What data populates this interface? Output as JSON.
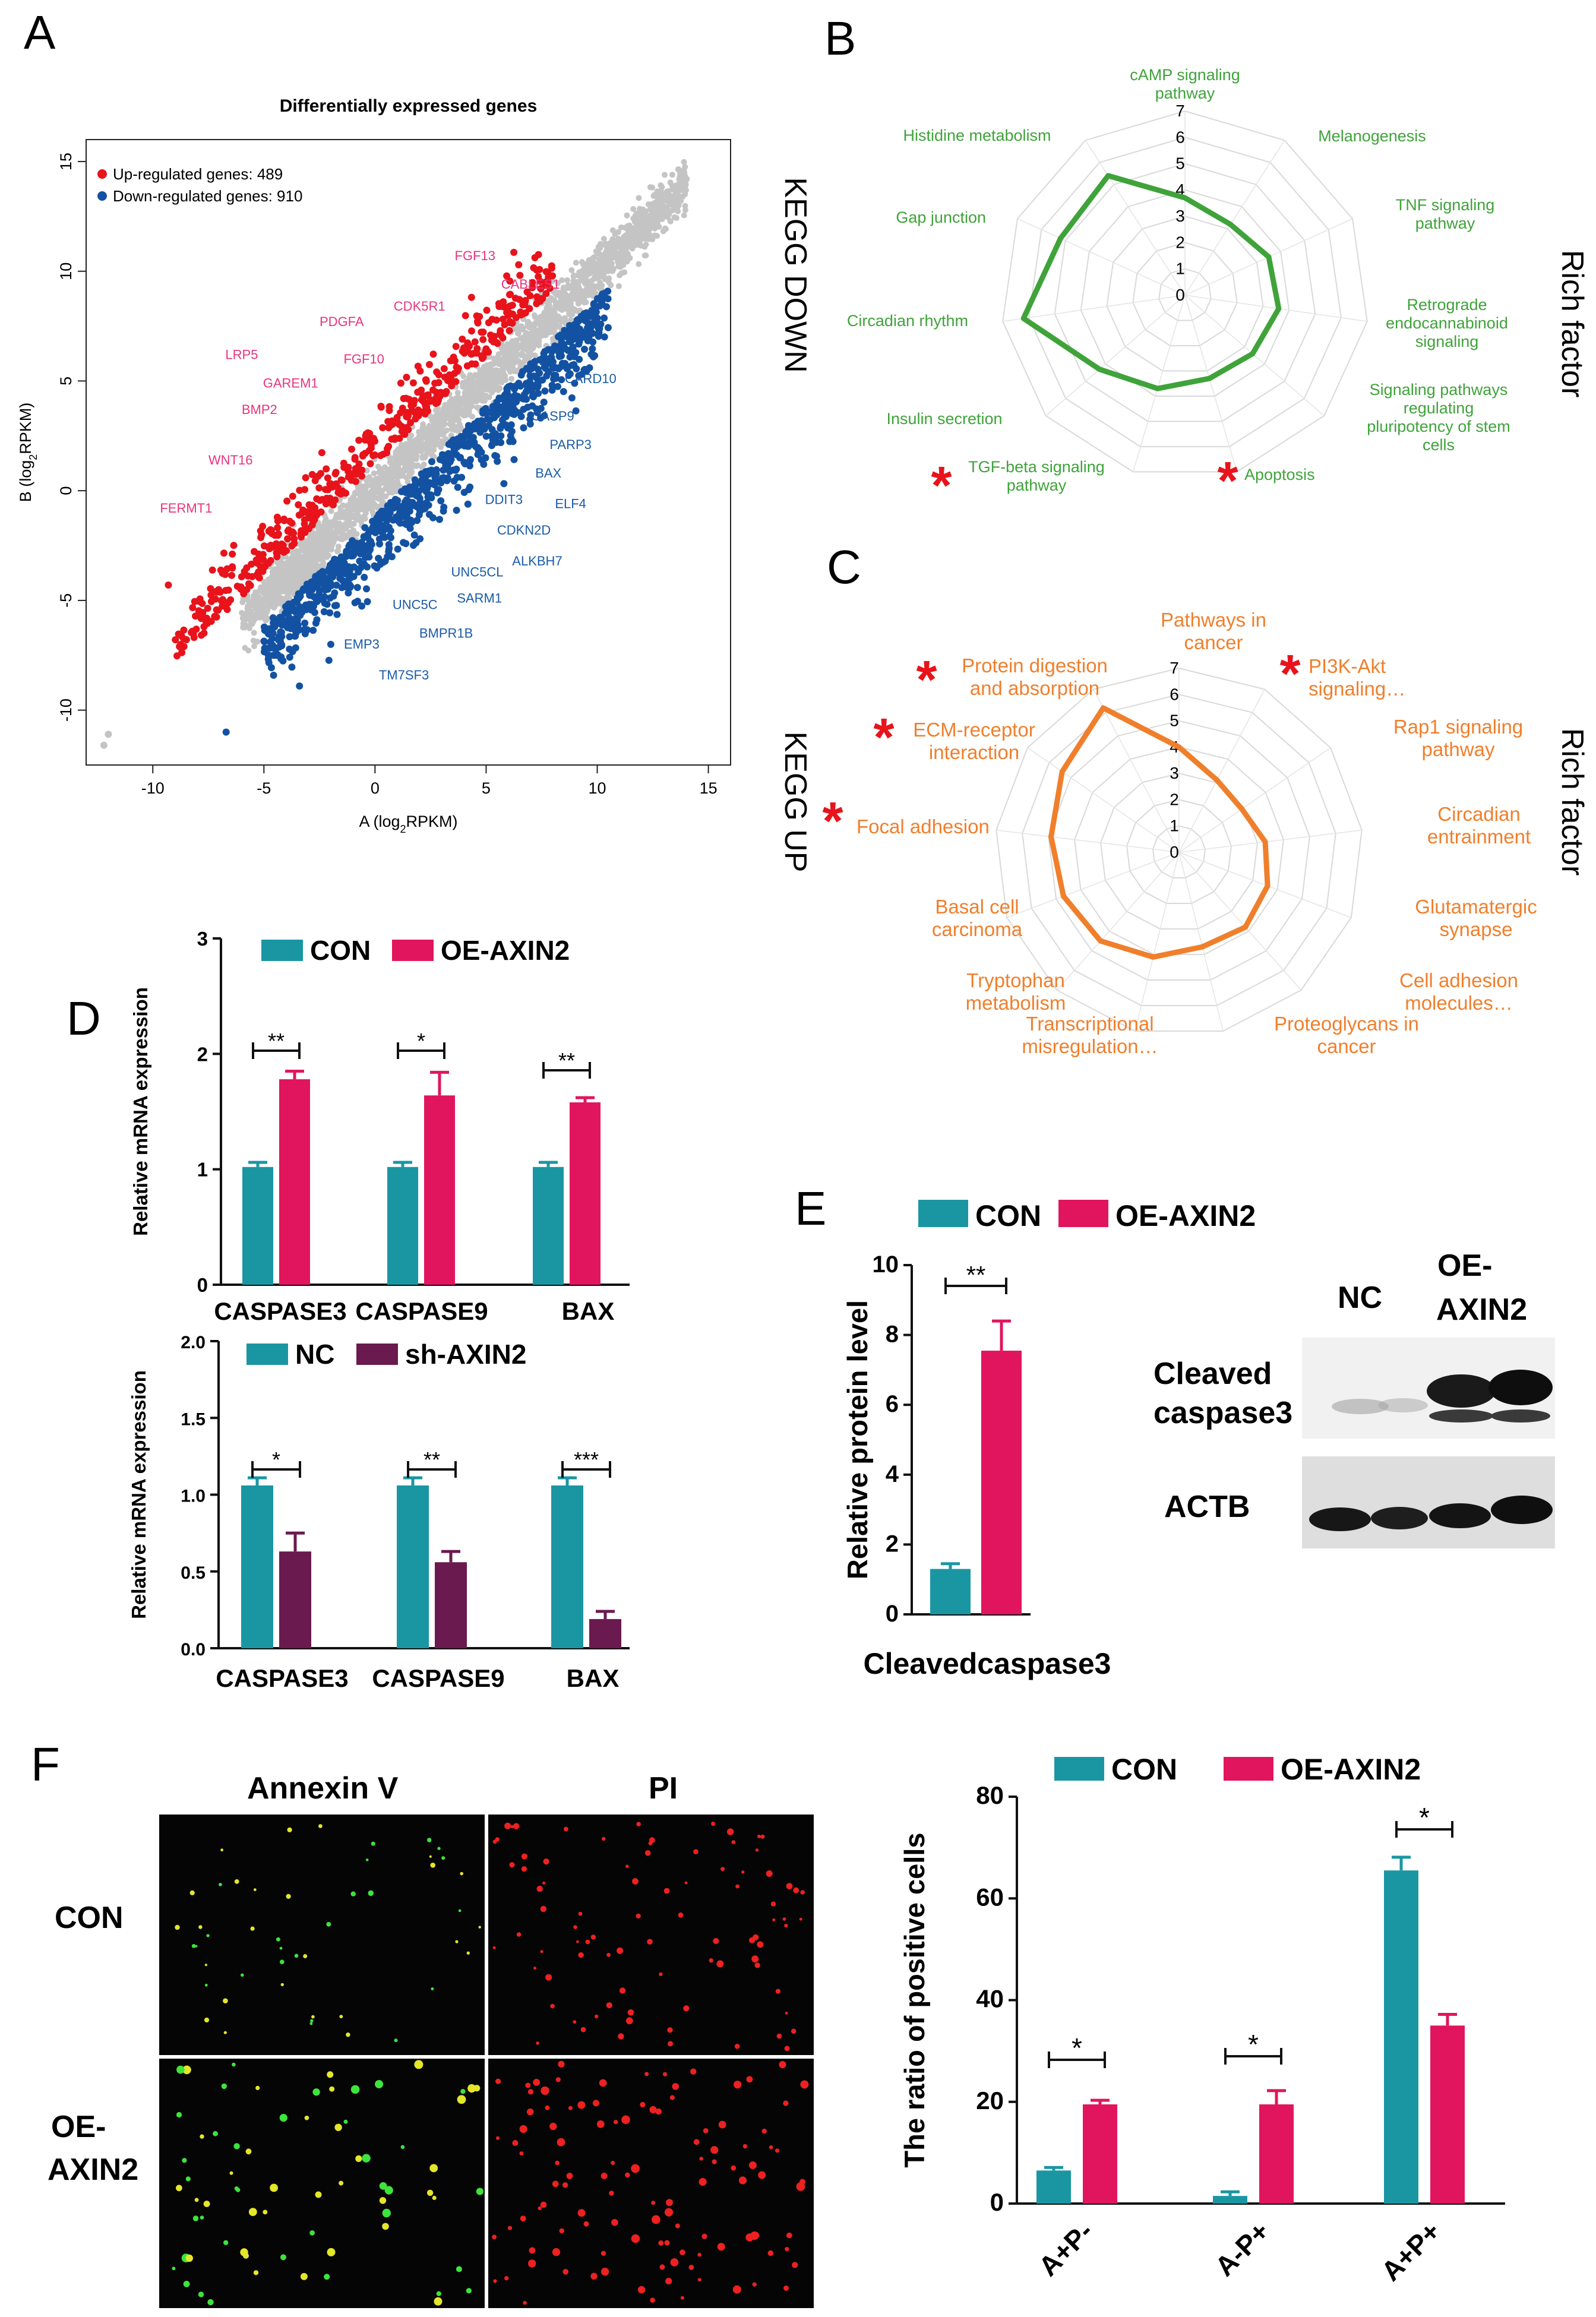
{
  "colors": {
    "up": "#e8131b",
    "down": "#1352a2",
    "nonsig": "#c4c4c4",
    "up_label": "#e8347e",
    "down_label": "#1a5ba8",
    "kegg_down": "#3fa33a",
    "kegg_up": "#f07f2c",
    "teal": "#1a96a3",
    "pink": "#e0155e",
    "maroon": "#6a1a4e",
    "star": "#e8131b",
    "fluor_green": "#3ce43c",
    "fluor_red": "#ee2020",
    "fluor_yellow": "#e4e628"
  },
  "labels": {
    "A": "A",
    "B": "B",
    "C": "C",
    "D": "D",
    "E": "E",
    "F": "F",
    "E_lane_nc": "NC",
    "E_lane_oe1": "OE-",
    "E_lane_oe2": "AXIN2",
    "E_blot1a": "Cleaved",
    "E_blot1b": "caspase3",
    "E_blot2": "ACTB",
    "F_col1": "Annexin V",
    "F_col2": "PI",
    "F_row1": "CON",
    "F_row2a": "OE-",
    "F_row2b": "AXIN2"
  },
  "chart_data": [
    {
      "id": "A",
      "type": "scatter",
      "title": "Differentially expressed genes",
      "xlabel_main": "A (log",
      "xlabel_sub": "2",
      "xlabel_tail": "RPKM)",
      "ylabel_main": "B (log",
      "ylabel_sub": "2",
      "ylabel_tail": "RPKM)",
      "xlim": [
        -13,
        16
      ],
      "ylim": [
        -12.5,
        16
      ],
      "xticks": [
        "-10",
        "-5",
        "0",
        "5",
        "10",
        "15"
      ],
      "yticks": [
        "-10",
        "-5",
        "0",
        "5",
        "10",
        "15"
      ],
      "legend": [
        "Up-regulated genes: 489",
        "Down-regulated genes: 910"
      ],
      "up_genes": [
        {
          "name": "FGF13",
          "x": 4.5,
          "y": 10.5
        },
        {
          "name": "CABLES1",
          "x": 7,
          "y": 9.2
        },
        {
          "name": "CDK5R1",
          "x": 2,
          "y": 8.2
        },
        {
          "name": "PDGFA",
          "x": -1.5,
          "y": 7.5
        },
        {
          "name": "FGF10",
          "x": -0.5,
          "y": 5.8
        },
        {
          "name": "LRP5",
          "x": -6,
          "y": 6
        },
        {
          "name": "GAREM1",
          "x": -3.8,
          "y": 4.7
        },
        {
          "name": "BMP2",
          "x": -5.2,
          "y": 3.5
        },
        {
          "name": "WNT16",
          "x": -6.5,
          "y": 1.2
        },
        {
          "name": "FERMT1",
          "x": -8.5,
          "y": -1
        }
      ],
      "down_genes": [
        {
          "name": "CARD10",
          "x": 9.7,
          "y": 4.9
        },
        {
          "name": "CASP9",
          "x": 8,
          "y": 3.2
        },
        {
          "name": "PARP3",
          "x": 8.8,
          "y": 1.9
        },
        {
          "name": "BAX",
          "x": 7.8,
          "y": 0.6
        },
        {
          "name": "ELF4",
          "x": 8.8,
          "y": -0.8
        },
        {
          "name": "DDIT3",
          "x": 5.8,
          "y": -0.6
        },
        {
          "name": "CDKN2D",
          "x": 6.7,
          "y": -2
        },
        {
          "name": "ALKBH7",
          "x": 7.3,
          "y": -3.4
        },
        {
          "name": "UNC5CL",
          "x": 4.6,
          "y": -3.9
        },
        {
          "name": "SARM1",
          "x": 4.7,
          "y": -5.1
        },
        {
          "name": "UNC5C",
          "x": 1.8,
          "y": -5.4
        },
        {
          "name": "BMPR1B",
          "x": 3.2,
          "y": -6.7
        },
        {
          "name": "EMP3",
          "x": -0.6,
          "y": -7.2
        },
        {
          "name": "TM7SF3",
          "x": 1.3,
          "y": -8.6
        }
      ]
    },
    {
      "id": "B",
      "type": "radar",
      "side_left": "KEGG DOWN",
      "side_right": "Rich factor",
      "rlim": [
        0,
        7
      ],
      "rticks": [
        "0",
        "1",
        "2",
        "3",
        "4",
        "5",
        "6",
        "7"
      ],
      "categories": [
        [
          "cAMP signaling",
          "pathway"
        ],
        [
          "Melanogenesis"
        ],
        [
          "TNF signaling",
          "pathway"
        ],
        [
          "Retrograde",
          "endocannabinoid",
          "signaling"
        ],
        [
          "Signaling pathways",
          "regulating",
          "pluripotency of stem",
          "cells"
        ],
        [
          "Apoptosis"
        ],
        [
          "TGF-beta signaling",
          "pathway"
        ],
        [
          "Insulin secretion"
        ],
        [
          "Circadian rhythm"
        ],
        [
          "Gap junction"
        ],
        [
          "Histidine metabolism"
        ]
      ],
      "starred": [
        5,
        6
      ],
      "values": [
        3.7,
        3.2,
        3.5,
        3.6,
        3.4,
        3.3,
        3.7,
        4.3,
        6.2,
        5.2,
        5.4
      ]
    },
    {
      "id": "C",
      "type": "radar",
      "side_left": "KEGG UP",
      "side_right": "Rich factor",
      "rlim": [
        0,
        7
      ],
      "rticks": [
        "0",
        "1",
        "2",
        "3",
        "4",
        "5",
        "6",
        "7"
      ],
      "categories": [
        [
          "Pathways in",
          "cancer"
        ],
        [
          "PI3K-Akt",
          "signaling…"
        ],
        [
          "Rap1 signaling",
          "pathway"
        ],
        [
          "Circadian",
          "entrainment"
        ],
        [
          "Glutamatergic",
          "synapse"
        ],
        [
          "Cell adhesion",
          "molecules…"
        ],
        [
          "Proteoglycans in",
          "cancer"
        ],
        [
          "Transcriptional",
          "misregulation…"
        ],
        [
          "Tryptophan",
          "metabolism"
        ],
        [
          "Basal cell",
          "carcinoma"
        ],
        [
          "Focal adhesion"
        ],
        [
          "ECM-receptor",
          "interaction"
        ],
        [
          "Protein digestion",
          "and absorption"
        ]
      ],
      "starred": [
        1,
        10,
        11,
        12
      ],
      "values": [
        4,
        3.1,
        2.9,
        3.3,
        3.6,
        3.8,
        3.7,
        4.1,
        4.5,
        4.7,
        4.9,
        5.4,
        6.2
      ]
    },
    {
      "id": "D1",
      "type": "bar",
      "ylabel": "Relative mRNA expression",
      "ylim": [
        0,
        3
      ],
      "yticks": [
        "0",
        "1",
        "2",
        "3"
      ],
      "categories": [
        "CASPASE3",
        "CASPASE9",
        "BAX"
      ],
      "series": [
        {
          "name": "CON",
          "values": [
            1.02,
            1.02,
            1.02
          ],
          "errors": [
            0.04,
            0.04,
            0.04
          ]
        },
        {
          "name": "OE-AXIN2",
          "values": [
            1.78,
            1.64,
            1.58
          ],
          "errors": [
            0.07,
            0.2,
            0.04
          ]
        }
      ],
      "significance": [
        "**",
        "*",
        "**"
      ]
    },
    {
      "id": "D2",
      "type": "bar",
      "ylabel": "Relative mRNA expression",
      "ylim": [
        0,
        2
      ],
      "yticks": [
        "0.0",
        "0.5",
        "1.0",
        "1.5",
        "2.0"
      ],
      "categories": [
        "CASPASE3",
        "CASPASE9",
        "BAX"
      ],
      "series": [
        {
          "name": "NC",
          "values": [
            1.06,
            1.06,
            1.06
          ],
          "errors": [
            0.05,
            0.05,
            0.05
          ]
        },
        {
          "name": "sh-AXIN2",
          "values": [
            0.63,
            0.56,
            0.19
          ],
          "errors": [
            0.12,
            0.07,
            0.05
          ]
        }
      ],
      "significance": [
        "*",
        "**",
        "***"
      ]
    },
    {
      "id": "E",
      "type": "bar",
      "ylabel": "Relative protein level",
      "ylim": [
        0,
        10
      ],
      "yticks": [
        "0",
        "2",
        "4",
        "6",
        "8",
        "10"
      ],
      "categories": [
        "Cleavedcaspase3"
      ],
      "series": [
        {
          "name": "CON",
          "values": [
            1.3
          ],
          "errors": [
            0.15
          ]
        },
        {
          "name": "OE-AXIN2",
          "values": [
            7.55
          ],
          "errors": [
            0.85
          ]
        }
      ],
      "significance": [
        "**"
      ]
    },
    {
      "id": "F",
      "type": "bar",
      "ylabel": "The ratio of positive cells",
      "ylim": [
        0,
        80
      ],
      "yticks": [
        "0",
        "20",
        "40",
        "60",
        "80"
      ],
      "categories": [
        "A+P-",
        "A-P+",
        "A+P+"
      ],
      "series": [
        {
          "name": "CON",
          "values": [
            6.5,
            1.5,
            65.5
          ],
          "errors": [
            0.6,
            0.8,
            2.6
          ]
        },
        {
          "name": "OE-AXIN2",
          "values": [
            19.5,
            19.5,
            35
          ],
          "errors": [
            0.8,
            2.7,
            2.2
          ]
        }
      ],
      "significance": [
        "*",
        "*",
        "*"
      ]
    }
  ]
}
